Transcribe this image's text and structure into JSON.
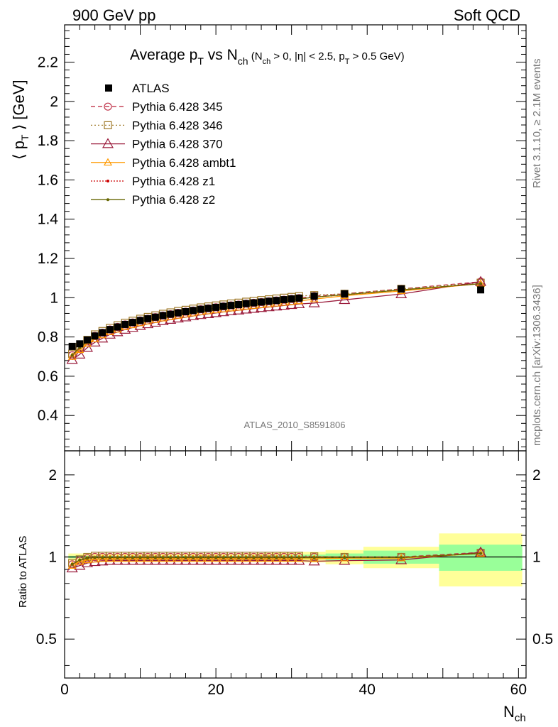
{
  "header": {
    "left": "900 GeV pp",
    "right": "Soft QCD"
  },
  "side_labels": {
    "rivet": "Rivet 3.1.10, ≥ 2.1M events",
    "mcplots": "mcplots.cern.ch [arXiv:1306.3436]"
  },
  "title_parts": {
    "a": "Average p",
    "a_sub": "T",
    "b": " vs N",
    "b_sub": "ch",
    "c": " (N",
    "c_sub": "ch",
    "d": " > 0, |η| < 2.5, p",
    "d_sub": "T",
    "e": " > 0.5 GeV)"
  },
  "watermark": "ATLAS_2010_S8591806",
  "ylabel_parts": {
    "open": "⟨ p",
    "sub": "T",
    "close": " ⟩ [GeV]"
  },
  "ratio_ylabel": "Ratio to ATLAS",
  "xlabel": {
    "main": "N",
    "sub": "ch"
  },
  "colors": {
    "atlas": "#000000",
    "p345": "#c0334a",
    "p346": "#a07a2a",
    "p370": "#9a1a3a",
    "ambt1": "#ff9900",
    "z1": "#cc0000",
    "z2": "#666600",
    "band_inner": "#99ff99",
    "band_outer": "#ffff99"
  },
  "chart_data": {
    "type": "line",
    "xlim": [
      0,
      61
    ],
    "main_ylim": [
      0.22,
      2.39
    ],
    "ratio_ylim": [
      0.36,
      2.45
    ],
    "main_yticks": [
      "0.4",
      "0.6",
      "0.8",
      "1",
      "1.2",
      "1.4",
      "1.6",
      "1.8",
      "2",
      "2.2"
    ],
    "ratio_yticks": [
      "0.5",
      "1",
      "2"
    ],
    "xticks": [
      "0",
      "20",
      "40",
      "60"
    ],
    "x": [
      1,
      2,
      3,
      4,
      5,
      6,
      7,
      8,
      9,
      10,
      11,
      12,
      13,
      14,
      15,
      16,
      17,
      18,
      19,
      20,
      21,
      22,
      23,
      24,
      25,
      26,
      27,
      28,
      29,
      30,
      31,
      33,
      37,
      44.5,
      55
    ],
    "bins": [
      [
        0.5,
        1.5
      ],
      [
        1.5,
        2.5
      ],
      [
        2.5,
        3.5
      ],
      [
        3.5,
        4.5
      ],
      [
        4.5,
        5.5
      ],
      [
        5.5,
        6.5
      ],
      [
        6.5,
        7.5
      ],
      [
        7.5,
        8.5
      ],
      [
        8.5,
        9.5
      ],
      [
        9.5,
        10.5
      ],
      [
        10.5,
        11.5
      ],
      [
        11.5,
        12.5
      ],
      [
        12.5,
        13.5
      ],
      [
        13.5,
        14.5
      ],
      [
        14.5,
        15.5
      ],
      [
        15.5,
        16.5
      ],
      [
        16.5,
        17.5
      ],
      [
        17.5,
        18.5
      ],
      [
        18.5,
        19.5
      ],
      [
        19.5,
        20.5
      ],
      [
        20.5,
        21.5
      ],
      [
        21.5,
        22.5
      ],
      [
        22.5,
        23.5
      ],
      [
        23.5,
        24.5
      ],
      [
        24.5,
        25.5
      ],
      [
        25.5,
        26.5
      ],
      [
        26.5,
        27.5
      ],
      [
        27.5,
        28.5
      ],
      [
        28.5,
        29.5
      ],
      [
        29.5,
        30.5
      ],
      [
        30.5,
        31.5
      ],
      [
        31.5,
        34.5
      ],
      [
        34.5,
        39.5
      ],
      [
        39.5,
        49.5
      ],
      [
        49.5,
        60.5
      ]
    ],
    "atlas": [
      0.752,
      0.765,
      0.785,
      0.805,
      0.822,
      0.838,
      0.851,
      0.864,
      0.874,
      0.884,
      0.893,
      0.901,
      0.909,
      0.916,
      0.923,
      0.929,
      0.935,
      0.941,
      0.946,
      0.951,
      0.956,
      0.961,
      0.965,
      0.97,
      0.974,
      0.978,
      0.982,
      0.986,
      0.99,
      0.994,
      0.998,
      1.008,
      1.02,
      1.045,
      1.04
    ],
    "stat_rel": [
      0.01,
      0.01,
      0.01,
      0.01,
      0.01,
      0.01,
      0.01,
      0.01,
      0.01,
      0.01,
      0.01,
      0.01,
      0.01,
      0.01,
      0.01,
      0.01,
      0.01,
      0.01,
      0.01,
      0.01,
      0.01,
      0.01,
      0.012,
      0.012,
      0.012,
      0.013,
      0.013,
      0.014,
      0.014,
      0.015,
      0.016,
      0.02,
      0.03,
      0.055,
      0.11
    ],
    "tot_rel": [
      0.03,
      0.03,
      0.03,
      0.03,
      0.03,
      0.03,
      0.03,
      0.03,
      0.03,
      0.03,
      0.03,
      0.03,
      0.03,
      0.03,
      0.03,
      0.03,
      0.03,
      0.03,
      0.03,
      0.03,
      0.03,
      0.03,
      0.032,
      0.033,
      0.033,
      0.034,
      0.035,
      0.036,
      0.037,
      0.038,
      0.04,
      0.045,
      0.06,
      0.09,
      0.22
    ],
    "series": [
      {
        "key": "p345",
        "name": "Pythia 6.428 345",
        "ratio": [
          0.94,
          0.97,
          0.99,
          1.0,
          1.0,
          1.0,
          1.0,
          1.0,
          1.0,
          1.0,
          1.0,
          1.0,
          1.0,
          1.0,
          1.0,
          1.0,
          1.0,
          1.0,
          1.0,
          1.0,
          1.0,
          1.0,
          1.0,
          1.0,
          1.0,
          1.0,
          1.0,
          1.0,
          1.0,
          1.0,
          1.0,
          1.0,
          1.0,
          1.0,
          1.04
        ]
      },
      {
        "key": "p346",
        "name": "Pythia 6.428 346",
        "ratio": [
          0.95,
          0.98,
          1.0,
          1.01,
          1.01,
          1.01,
          1.01,
          1.01,
          1.01,
          1.01,
          1.01,
          1.01,
          1.01,
          1.01,
          1.01,
          1.01,
          1.01,
          1.01,
          1.01,
          1.01,
          1.01,
          1.01,
          1.01,
          1.01,
          1.01,
          1.01,
          1.01,
          1.01,
          1.01,
          1.01,
          1.01,
          1.005,
          1.0,
          1.0,
          1.035
        ]
      },
      {
        "key": "p370",
        "name": "Pythia 6.428 370",
        "ratio": [
          0.91,
          0.93,
          0.95,
          0.96,
          0.965,
          0.97,
          0.97,
          0.97,
          0.97,
          0.97,
          0.97,
          0.97,
          0.97,
          0.97,
          0.97,
          0.97,
          0.97,
          0.97,
          0.97,
          0.97,
          0.97,
          0.97,
          0.97,
          0.97,
          0.97,
          0.97,
          0.97,
          0.97,
          0.97,
          0.97,
          0.97,
          0.965,
          0.97,
          0.975,
          1.04
        ]
      },
      {
        "key": "ambt1",
        "name": "Pythia 6.428 ambt1",
        "ratio": [
          0.93,
          0.96,
          0.975,
          0.98,
          0.985,
          0.985,
          0.985,
          0.985,
          0.985,
          0.985,
          0.985,
          0.985,
          0.985,
          0.985,
          0.985,
          0.985,
          0.985,
          0.985,
          0.985,
          0.985,
          0.985,
          0.985,
          0.985,
          0.985,
          0.985,
          0.985,
          0.985,
          0.985,
          0.985,
          0.985,
          0.985,
          0.985,
          0.99,
          0.99,
          1.03
        ]
      },
      {
        "key": "z1",
        "name": "Pythia 6.428 z1",
        "ratio": [
          0.94,
          0.975,
          0.99,
          0.995,
          0.995,
          0.995,
          0.995,
          0.995,
          0.995,
          0.995,
          0.995,
          0.995,
          0.995,
          0.995,
          0.995,
          0.995,
          0.995,
          0.995,
          0.995,
          0.995,
          0.995,
          0.995,
          0.995,
          0.995,
          0.995,
          0.995,
          0.995,
          0.995,
          0.995,
          0.995,
          0.995,
          0.995,
          0.995,
          0.995,
          1.03
        ]
      },
      {
        "key": "z2",
        "name": "Pythia 6.428 z2",
        "ratio": [
          0.94,
          0.975,
          0.99,
          0.995,
          0.995,
          0.995,
          0.995,
          0.995,
          0.995,
          0.995,
          0.995,
          0.995,
          0.995,
          0.995,
          0.995,
          0.995,
          0.995,
          0.995,
          0.995,
          0.995,
          0.995,
          0.995,
          0.995,
          0.995,
          0.995,
          0.995,
          0.995,
          0.995,
          0.995,
          0.995,
          0.995,
          0.995,
          0.995,
          0.995,
          1.03
        ]
      }
    ],
    "legend": [
      "ATLAS",
      "Pythia 6.428 345",
      "Pythia 6.428 346",
      "Pythia 6.428 370",
      "Pythia 6.428 ambt1",
      "Pythia 6.428 z1",
      "Pythia 6.428 z2"
    ],
    "legend_position": "top-left"
  }
}
